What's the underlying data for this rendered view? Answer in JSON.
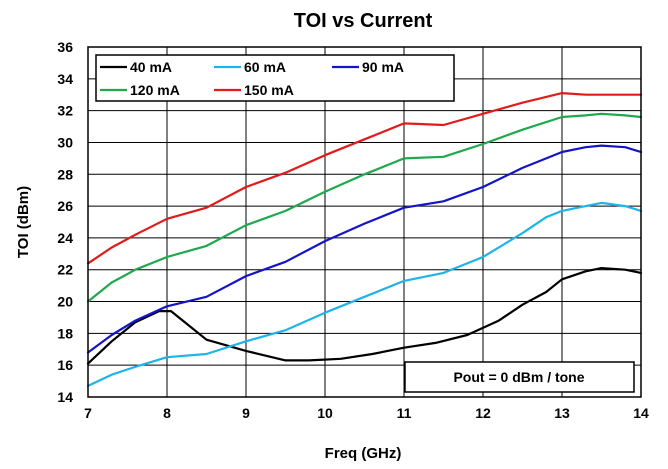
{
  "chart_data": {
    "type": "line",
    "title": "TOI vs Current",
    "xlabel": "Freq (GHz)",
    "ylabel": "TOI (dBm)",
    "xlim": [
      7,
      14
    ],
    "ylim": [
      14,
      36
    ],
    "xticks": [
      7,
      8,
      9,
      10,
      11,
      12,
      13,
      14
    ],
    "yticks": [
      14,
      16,
      18,
      20,
      22,
      24,
      26,
      28,
      30,
      32,
      34,
      36
    ],
    "grid": true,
    "legend_position": "top-left",
    "annotation": "Pout = 0 dBm / tone",
    "series": [
      {
        "name": "40 mA",
        "color": "#000000",
        "x": [
          7.0,
          7.3,
          7.6,
          7.9,
          8.05,
          8.2,
          8.5,
          9.0,
          9.5,
          9.8,
          10.2,
          10.6,
          11.0,
          11.4,
          11.8,
          12.2,
          12.5,
          12.8,
          13.0,
          13.3,
          13.5,
          13.8,
          14.0
        ],
        "y": [
          16.1,
          17.5,
          18.7,
          19.4,
          19.4,
          18.8,
          17.6,
          16.9,
          16.3,
          16.3,
          16.4,
          16.7,
          17.1,
          17.4,
          17.9,
          18.8,
          19.8,
          20.6,
          21.4,
          21.9,
          22.1,
          22.0,
          21.8
        ]
      },
      {
        "name": "60 mA",
        "color": "#1eb4e8",
        "x": [
          7.0,
          7.3,
          7.6,
          8.0,
          8.5,
          9.0,
          9.5,
          10.0,
          10.5,
          11.0,
          11.5,
          12.0,
          12.5,
          12.8,
          13.0,
          13.3,
          13.5,
          13.8,
          14.0
        ],
        "y": [
          14.7,
          15.4,
          15.9,
          16.5,
          16.7,
          17.5,
          18.2,
          19.3,
          20.3,
          21.3,
          21.8,
          22.8,
          24.3,
          25.3,
          25.7,
          26.0,
          26.2,
          26.0,
          25.7
        ]
      },
      {
        "name": "90 mA",
        "color": "#1414c8",
        "x": [
          7.0,
          7.3,
          7.6,
          8.0,
          8.5,
          9.0,
          9.5,
          10.0,
          10.5,
          11.0,
          11.5,
          12.0,
          12.5,
          12.8,
          13.0,
          13.3,
          13.5,
          13.8,
          14.0
        ],
        "y": [
          16.8,
          17.9,
          18.8,
          19.7,
          20.3,
          21.6,
          22.5,
          23.8,
          24.9,
          25.9,
          26.3,
          27.2,
          28.4,
          29.0,
          29.4,
          29.7,
          29.8,
          29.7,
          29.4
        ]
      },
      {
        "name": "120 mA",
        "color": "#1fa84c",
        "x": [
          7.0,
          7.3,
          7.6,
          8.0,
          8.5,
          9.0,
          9.5,
          10.0,
          10.5,
          11.0,
          11.5,
          12.0,
          12.5,
          13.0,
          13.3,
          13.5,
          13.8,
          14.0
        ],
        "y": [
          20.0,
          21.2,
          22.0,
          22.8,
          23.5,
          24.8,
          25.7,
          26.9,
          28.0,
          29.0,
          29.1,
          29.9,
          30.8,
          31.6,
          31.7,
          31.8,
          31.7,
          31.6
        ]
      },
      {
        "name": "150 mA",
        "color": "#e21a1a",
        "x": [
          7.0,
          7.3,
          7.6,
          8.0,
          8.5,
          9.0,
          9.5,
          10.0,
          10.5,
          11.0,
          11.5,
          12.0,
          12.5,
          13.0,
          13.3,
          13.5,
          13.8,
          14.0
        ],
        "y": [
          22.4,
          23.4,
          24.2,
          25.2,
          25.9,
          27.2,
          28.1,
          29.2,
          30.2,
          31.2,
          31.1,
          31.8,
          32.5,
          33.1,
          33.0,
          33.0,
          33.0,
          33.0
        ]
      }
    ]
  }
}
